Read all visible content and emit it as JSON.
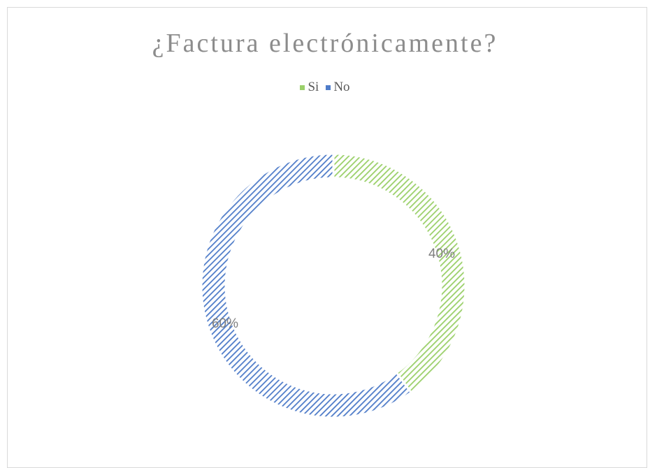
{
  "chart_data": {
    "type": "pie",
    "title": "¿Factura electrónicamente?",
    "categories": [
      "Si",
      "No"
    ],
    "values": [
      40,
      60
    ],
    "data_labels": [
      "40%",
      "60%"
    ],
    "donut": true,
    "colors": [
      "#9bd06a",
      "#4f7cc9"
    ],
    "legend_position": "top"
  }
}
